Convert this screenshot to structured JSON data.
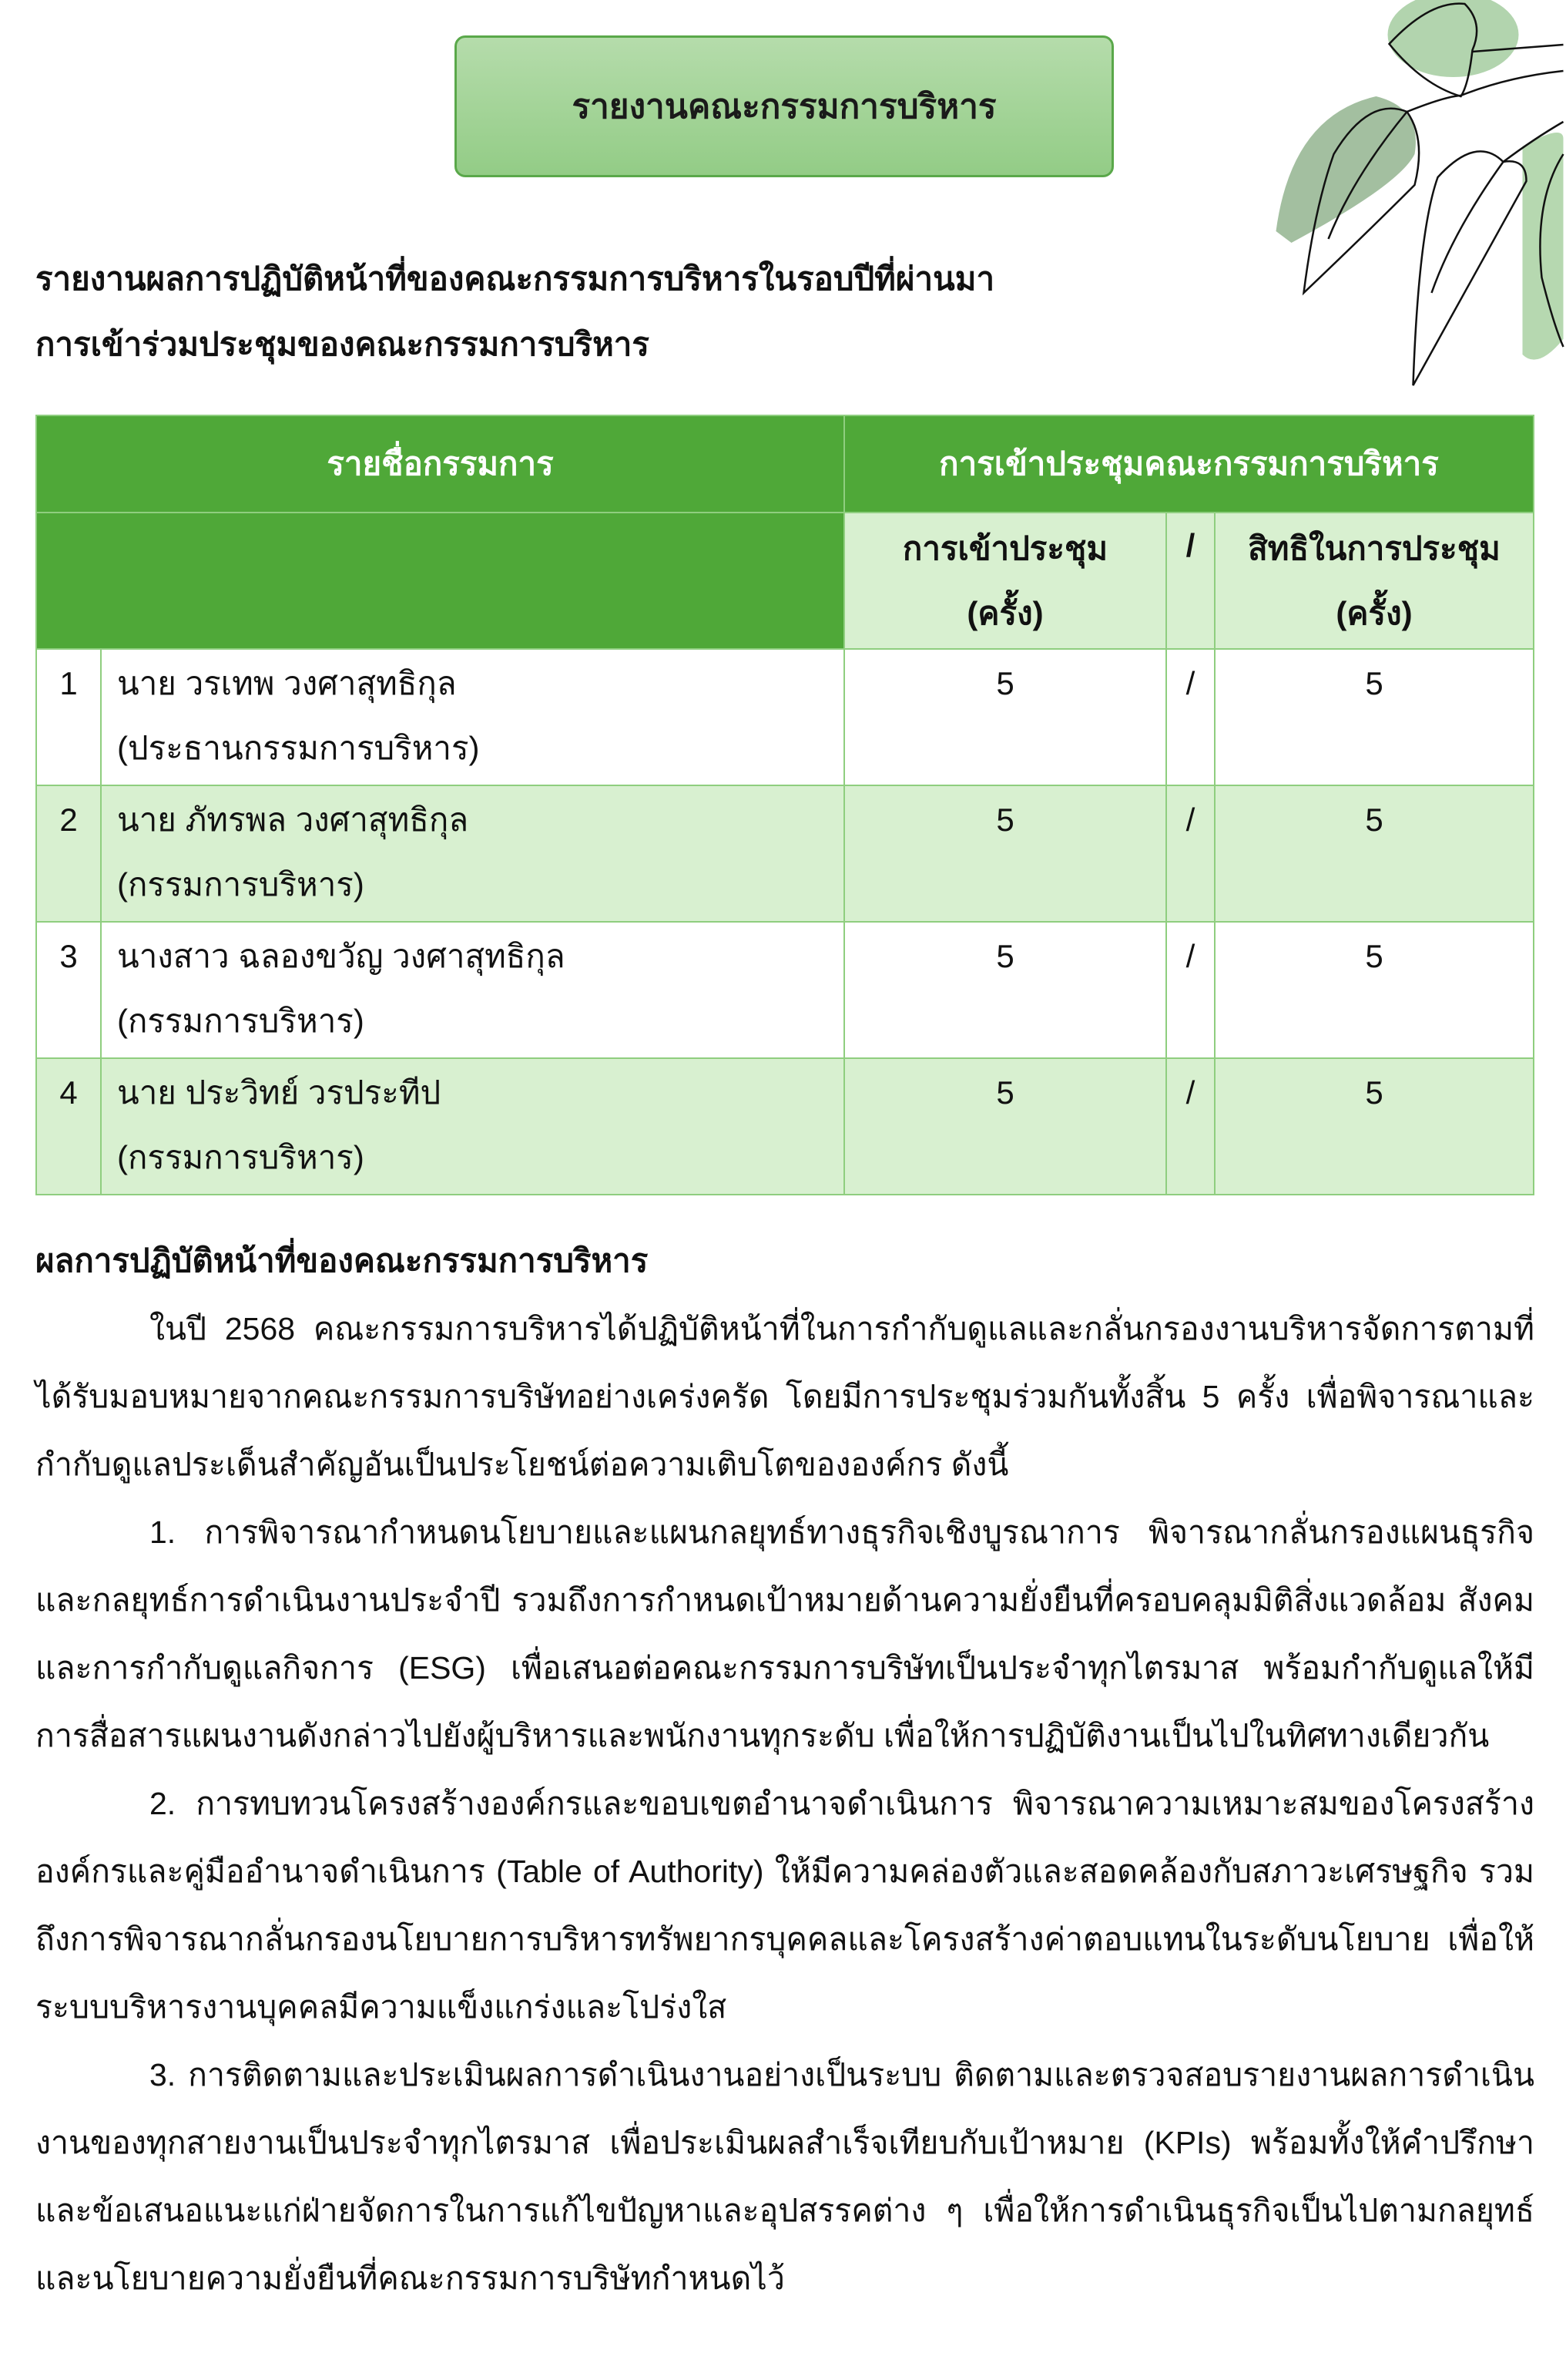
{
  "title": "รายงานคณะกรรมการบริหาร",
  "heading1": "รายงานผลการปฏิบัติหน้าที่ของคณะกรรมการบริหารในรอบปีที่ผ่านมา",
  "heading2": "การเข้าร่วมประชุมของคณะกรรมการบริหาร",
  "colors": {
    "header_green": "#4fa838",
    "row_light_green": "#d8f0d0",
    "title_box": "#a5d59a"
  },
  "table": {
    "header_names": "รายชื่อกรรมการ",
    "header_meeting": "การเข้าประชุมคณะกรรมการบริหาร",
    "sub_attend_1": "การเข้าประชุม",
    "sub_attend_2": "(ครั้ง)",
    "sub_slash": "/",
    "sub_rights_1": "สิทธิในการประชุม",
    "sub_rights_2": "(ครั้ง)",
    "rows": [
      {
        "no": "1",
        "name": "นาย วรเทพ วงศาสุทธิกุล",
        "position": "(ประธานกรรมการบริหาร)",
        "attended": "5",
        "slash": "/",
        "entitled": "5"
      },
      {
        "no": "2",
        "name": "นาย ภัทรพล วงศาสุทธิกุล",
        "position": "(กรรมการบริหาร)",
        "attended": "5",
        "slash": "/",
        "entitled": "5"
      },
      {
        "no": "3",
        "name": "นางสาว ฉลองขวัญ วงศาสุทธิกุล",
        "position": "(กรรมการบริหาร)",
        "attended": "5",
        "slash": "/",
        "entitled": "5"
      },
      {
        "no": "4",
        "name": "นาย ประวิทย์ วรประทีป",
        "position": "(กรรมการบริหาร)",
        "attended": "5",
        "slash": "/",
        "entitled": "5"
      }
    ]
  },
  "section_heading": "ผลการปฏิบัติหน้าที่ของคณะกรรมการบริหาร",
  "paragraphs": [
    "ในปี 2568 คณะกรรมการบริหารได้ปฏิบัติหน้าที่ในการกำกับดูแลและกลั่นกรองงานบริหารจัดการตามที่ได้รับมอบหมายจากคณะกรรมการบริษัทอย่างเคร่งครัด โดยมีการประชุมร่วมกันทั้งสิ้น 5 ครั้ง เพื่อพิจารณาและกำกับดูแลประเด็นสำคัญอันเป็นประโยชน์ต่อความเติบโตขององค์กร ดังนี้",
    "1. การพิจารณากำหนดนโยบายและแผนกลยุทธ์ทางธุรกิจเชิงบูรณาการ พิจารณากลั่นกรองแผนธุรกิจและกลยุทธ์การดำเนินงานประจำปี รวมถึงการกำหนดเป้าหมายด้านความยั่งยืนที่ครอบคลุมมิติสิ่งแวดล้อม สังคม และการกำกับดูแลกิจการ (ESG) เพื่อเสนอต่อคณะกรรมการบริษัทเป็นประจำทุกไตรมาส พร้อมกำกับดูแลให้มีการสื่อสารแผนงานดังกล่าวไปยังผู้บริหารและพนักงานทุกระดับ เพื่อให้การปฏิบัติงานเป็นไปในทิศทางเดียวกัน",
    "2. การทบทวนโครงสร้างองค์กรและขอบเขตอำนาจดำเนินการ พิจารณาความเหมาะสมของโครงสร้างองค์กรและคู่มืออำนาจดำเนินการ (Table of Authority) ให้มีความคล่องตัวและสอดคล้องกับสภาวะเศรษฐกิจ รวมถึงการพิจารณากลั่นกรองนโยบายการบริหารทรัพยากรบุคคลและโครงสร้างค่าตอบแทนในระดับนโยบาย เพื่อให้ระบบบริหารงานบุคคลมีความแข็งแกร่งและโปร่งใส",
    "3. การติดตามและประเมินผลการดำเนินงานอย่างเป็นระบบ ติดตามและตรวจสอบรายงานผลการดำเนินงานของทุกสายงานเป็นประจำทุกไตรมาส เพื่อประเมินผลสำเร็จเทียบกับเป้าหมาย (KPIs) พร้อมทั้งให้คำปรึกษาและข้อเสนอแนะแก่ฝ่ายจัดการในการแก้ไขปัญหาและอุปสรรคต่าง ๆ เพื่อให้การดำเนินธุรกิจเป็นไปตามกลยุทธ์และนโยบายความยั่งยืนที่คณะกรรมการบริษัทกำหนดไว้"
  ]
}
